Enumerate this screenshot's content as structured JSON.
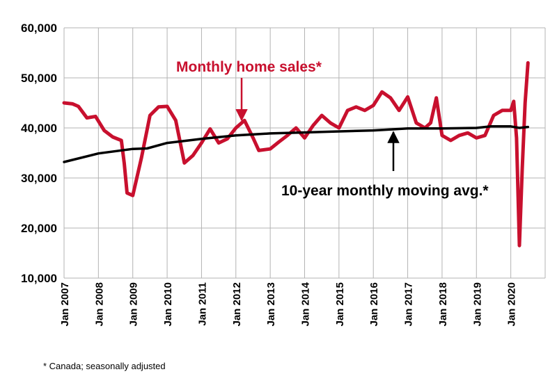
{
  "chart_data": {
    "type": "line",
    "ylim": [
      10000,
      60000
    ],
    "y_ticks": [
      "60,000",
      "50,000",
      "40,000",
      "30,000",
      "20,000",
      "10,000"
    ],
    "x_ticks": [
      "Jan 2007",
      "Jan 2008",
      "Jan 2009",
      "Jan 2010",
      "Jan 2011",
      "Jan 2012",
      "Jan 2013",
      "Jan 2014",
      "Jan 2015",
      "Jan 2016",
      "Jan 2017",
      "Jan 2018",
      "Jan 2019",
      "Jan 2020"
    ],
    "grid": true,
    "colors": {
      "sales": "#c8102e",
      "moving_avg": "#000000",
      "grid": "#b3b3b3"
    },
    "series": [
      {
        "name": "Monthly home sales*",
        "points": [
          [
            "2007-01",
            45000
          ],
          [
            "2007-04",
            44800
          ],
          [
            "2007-06",
            44300
          ],
          [
            "2007-09",
            42000
          ],
          [
            "2007-12",
            42300
          ],
          [
            "2008-03",
            39500
          ],
          [
            "2008-06",
            38200
          ],
          [
            "2008-09",
            37500
          ],
          [
            "2008-10",
            33000
          ],
          [
            "2008-11",
            27000
          ],
          [
            "2009-01",
            26500
          ],
          [
            "2009-04",
            34000
          ],
          [
            "2009-07",
            42500
          ],
          [
            "2009-10",
            44200
          ],
          [
            "2010-01",
            44300
          ],
          [
            "2010-04",
            41500
          ],
          [
            "2010-07",
            33000
          ],
          [
            "2010-10",
            34500
          ],
          [
            "2011-01",
            37000
          ],
          [
            "2011-04",
            39800
          ],
          [
            "2011-07",
            37000
          ],
          [
            "2011-10",
            37800
          ],
          [
            "2012-01",
            40000
          ],
          [
            "2012-04",
            41500
          ],
          [
            "2012-07",
            38000
          ],
          [
            "2012-09",
            35500
          ],
          [
            "2013-01",
            35800
          ],
          [
            "2013-04",
            37200
          ],
          [
            "2013-07",
            38500
          ],
          [
            "2013-10",
            40000
          ],
          [
            "2014-01",
            38000
          ],
          [
            "2014-04",
            40500
          ],
          [
            "2014-07",
            42500
          ],
          [
            "2014-10",
            41000
          ],
          [
            "2015-01",
            40000
          ],
          [
            "2015-04",
            43500
          ],
          [
            "2015-07",
            44200
          ],
          [
            "2015-10",
            43500
          ],
          [
            "2016-01",
            44500
          ],
          [
            "2016-04",
            47200
          ],
          [
            "2016-07",
            46000
          ],
          [
            "2016-10",
            43500
          ],
          [
            "2017-01",
            46200
          ],
          [
            "2017-04",
            41000
          ],
          [
            "2017-07",
            40000
          ],
          [
            "2017-09",
            41000
          ],
          [
            "2017-11",
            46000
          ],
          [
            "2018-01",
            38500
          ],
          [
            "2018-04",
            37500
          ],
          [
            "2018-07",
            38500
          ],
          [
            "2018-10",
            39000
          ],
          [
            "2019-01",
            38000
          ],
          [
            "2019-04",
            38500
          ],
          [
            "2019-07",
            42500
          ],
          [
            "2019-10",
            43500
          ],
          [
            "2020-01",
            43500
          ],
          [
            "2020-02",
            45300
          ],
          [
            "2020-03",
            38000
          ],
          [
            "2020-04",
            16500
          ],
          [
            "2020-05",
            32000
          ],
          [
            "2020-06",
            45000
          ],
          [
            "2020-07",
            53000
          ]
        ]
      },
      {
        "name": "10-year monthly moving avg.*",
        "points": [
          [
            "2007-01",
            33200
          ],
          [
            "2008-01",
            34900
          ],
          [
            "2009-01",
            35800
          ],
          [
            "2009-06",
            35900
          ],
          [
            "2010-01",
            37000
          ],
          [
            "2011-01",
            37800
          ],
          [
            "2012-01",
            38500
          ],
          [
            "2013-01",
            38900
          ],
          [
            "2014-01",
            39100
          ],
          [
            "2015-01",
            39300
          ],
          [
            "2016-01",
            39500
          ],
          [
            "2017-01",
            39900
          ],
          [
            "2018-01",
            39900
          ],
          [
            "2019-01",
            40000
          ],
          [
            "2019-06",
            40300
          ],
          [
            "2020-01",
            40300
          ],
          [
            "2020-04",
            40000
          ],
          [
            "2020-07",
            40200
          ]
        ]
      }
    ],
    "annotations": [
      {
        "text": "Monthly home sales*",
        "series": 0,
        "arrow_to": [
          "2012-03",
          41000
        ]
      },
      {
        "text": "10-year monthly moving avg.*",
        "series": 1,
        "arrow_to": [
          "2016-08",
          40000
        ]
      }
    ],
    "footnote": "* Canada; seasonally adjusted"
  }
}
